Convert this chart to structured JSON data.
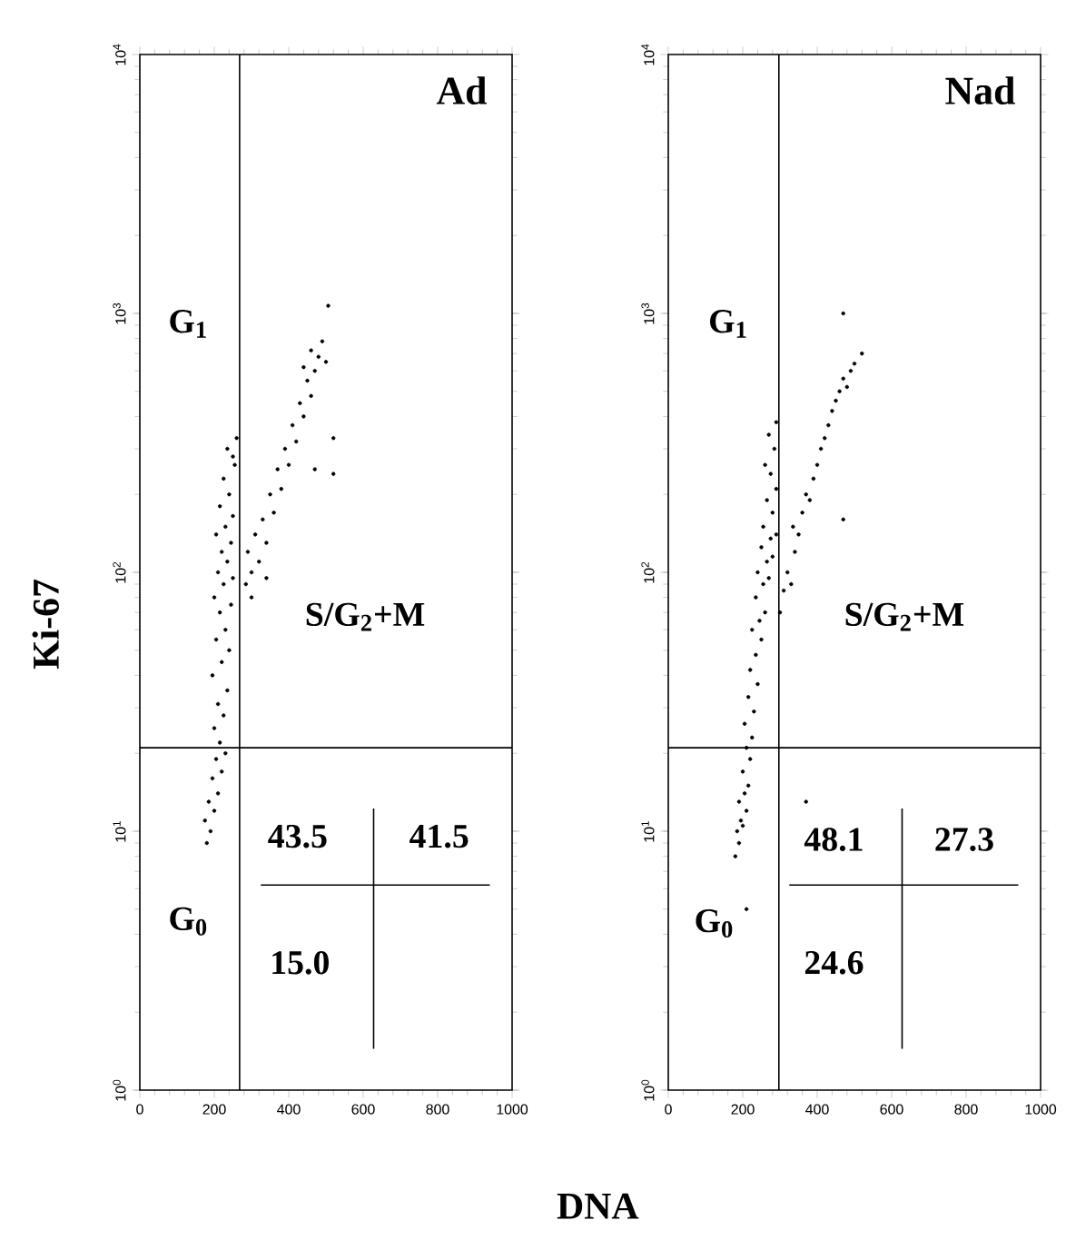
{
  "chart_data": [
    {
      "type": "scatter",
      "title": "Ad",
      "xlabel": "DNA",
      "ylabel": "Ki-67",
      "log": "y",
      "xlim": [
        0,
        1000
      ],
      "ylim": [
        1,
        10000
      ],
      "xticks": [
        0,
        200,
        400,
        600,
        800,
        1000
      ],
      "yticks": [
        {
          "value": 1,
          "label": "10$^{0}$"
        },
        {
          "value": 10,
          "label": "10$^{1}$"
        },
        {
          "value": 100,
          "label": "10$^{2}$"
        },
        {
          "value": 1000,
          "label": "10$^{3}$"
        },
        {
          "value": 10000,
          "label": "10$^{4}$"
        }
      ],
      "series": [
        {
          "color": "#000000",
          "x": [
            180,
            190,
            175,
            200,
            185,
            210,
            195,
            220,
            205,
            230,
            215,
            200,
            225,
            210,
            235,
            195,
            220,
            240,
            205,
            230,
            215,
            245,
            200,
            225,
            250,
            210,
            235,
            220,
            245,
            205,
            230,
            250,
            215,
            240,
            225,
            255,
            235,
            260,
            250,
            285,
            300,
            290,
            320,
            310,
            340,
            330,
            360,
            350,
            380,
            370,
            400,
            390,
            420,
            410,
            440,
            430,
            460,
            450,
            470,
            440,
            480,
            460,
            490,
            500,
            520,
            520,
            470,
            506,
            300,
            340
          ],
          "values": [
            9,
            10,
            11,
            12,
            13,
            14,
            16,
            17,
            19,
            20,
            22,
            25,
            28,
            31,
            35,
            40,
            45,
            50,
            55,
            60,
            70,
            75,
            80,
            90,
            95,
            100,
            110,
            120,
            130,
            140,
            150,
            165,
            180,
            200,
            230,
            260,
            300,
            330,
            280,
            90,
            100,
            120,
            110,
            140,
            130,
            160,
            170,
            200,
            210,
            250,
            260,
            300,
            320,
            370,
            400,
            450,
            480,
            550,
            600,
            620,
            680,
            720,
            780,
            650,
            330,
            240,
            250,
            1070,
            80,
            95
          ]
        }
      ],
      "ref_lines": [
        {
          "axis": "x",
          "value": 268,
          "color": "#000000"
        },
        {
          "axis": "y",
          "value": 21,
          "color": "#000000"
        }
      ],
      "annotations": [
        "G$_{1}$",
        "S/G$_{2}$+M",
        "G$_{0}$",
        "43.5",
        "41.5",
        "15.0"
      ]
    },
    {
      "type": "scatter",
      "title": "Nad",
      "log": "y",
      "xlim": [
        0,
        1000
      ],
      "ylim": [
        1,
        10000
      ],
      "xticks": [
        0,
        200,
        400,
        600,
        800,
        1000
      ],
      "yticks": [
        {
          "value": 1,
          "label": "10$^{0}$"
        },
        {
          "value": 10,
          "label": "10$^{1}$"
        },
        {
          "value": 100,
          "label": "10$^{2}$"
        },
        {
          "value": 1000,
          "label": "10$^{3}$"
        },
        {
          "value": 10000,
          "label": "10$^{4}$"
        }
      ],
      "series": [
        {
          "color": "#000000",
          "x": [
            180,
            190,
            185,
            200,
            195,
            210,
            190,
            205,
            215,
            200,
            220,
            210,
            225,
            205,
            230,
            215,
            240,
            220,
            235,
            250,
            225,
            245,
            260,
            235,
            255,
            270,
            240,
            265,
            280,
            250,
            275,
            290,
            255,
            280,
            265,
            290,
            275,
            260,
            285,
            270,
            290,
            300,
            310,
            320,
            330,
            340,
            335,
            350,
            360,
            370,
            380,
            390,
            400,
            410,
            420,
            430,
            440,
            450,
            460,
            470,
            480,
            490,
            500,
            520,
            470,
            470,
            370,
            210
          ],
          "values": [
            8,
            9,
            10,
            10.5,
            11,
            12,
            13,
            14,
            15,
            17,
            19,
            21,
            23,
            26,
            29,
            33,
            37,
            42,
            48,
            55,
            60,
            65,
            70,
            80,
            90,
            95,
            100,
            110,
            115,
            125,
            135,
            140,
            150,
            170,
            190,
            210,
            240,
            260,
            300,
            340,
            380,
            70,
            85,
            100,
            90,
            120,
            150,
            140,
            170,
            200,
            190,
            230,
            260,
            300,
            330,
            370,
            420,
            460,
            500,
            560,
            520,
            600,
            640,
            700,
            1000,
            160,
            13,
            5
          ]
        }
      ],
      "ref_lines": [
        {
          "axis": "x",
          "value": 297,
          "color": "#000000"
        },
        {
          "axis": "y",
          "value": 21,
          "color": "#000000"
        }
      ],
      "annotations": [
        "G$_{1}$",
        "S/G$_{2}$+M",
        "G$_{0}$",
        "48.1",
        "27.3",
        "24.6"
      ]
    }
  ]
}
